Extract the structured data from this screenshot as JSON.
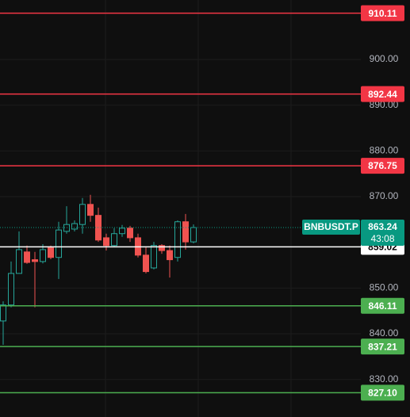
{
  "chart_data": {
    "type": "candlestick",
    "ylim": [
      821.8,
      913.0
    ],
    "yticks": [
      {
        "value": 830,
        "label": "830.00"
      },
      {
        "value": 840,
        "label": "840.00"
      },
      {
        "value": 850,
        "label": "850.00"
      },
      {
        "value": 870,
        "label": "870.00"
      },
      {
        "value": 880,
        "label": "880.00"
      },
      {
        "value": 890,
        "label": "890.00"
      },
      {
        "value": 900,
        "label": "900.00"
      }
    ],
    "grid": true,
    "up_color": "#26a69a",
    "down_color": "#ef5350",
    "open": [
      842.8,
      846.3,
      853.2,
      857.9,
      856.2,
      855.8,
      858.8,
      856.7,
      862.4,
      862.9,
      863.9,
      868.3,
      865.9,
      861.0,
      859.3,
      861.9,
      863.1,
      861.0,
      857.2,
      854.4,
      859.3,
      858.2,
      856.7,
      864.5,
      860.1
    ],
    "high": [
      847.1,
      855.8,
      862.4,
      859.3,
      857.9,
      859.6,
      859.3,
      864.5,
      867.9,
      864.8,
      869.7,
      870.4,
      867.6,
      861.9,
      863.1,
      863.8,
      863.6,
      861.9,
      858.9,
      860.1,
      859.6,
      859.3,
      864.8,
      866.2,
      863.9
    ],
    "low": [
      837.6,
      845.8,
      853.2,
      855.3,
      845.8,
      855.4,
      856.3,
      852.0,
      861.9,
      862.4,
      861.9,
      864.5,
      860.1,
      858.2,
      858.9,
      861.2,
      860.1,
      856.7,
      853.2,
      854.1,
      857.5,
      852.3,
      855.8,
      858.4,
      859.8
    ],
    "close": [
      846.3,
      853.2,
      858.4,
      855.6,
      855.8,
      858.4,
      856.7,
      862.7,
      863.9,
      864.1,
      868.3,
      865.9,
      860.5,
      859.3,
      861.9,
      863.1,
      861.0,
      857.2,
      853.6,
      859.3,
      858.2,
      856.2,
      864.5,
      860.1,
      863.24
    ],
    "levels": [
      {
        "value": 910.11,
        "label": "910.11",
        "color": "#f23645"
      },
      {
        "value": 892.44,
        "label": "892.44",
        "color": "#f23645"
      },
      {
        "value": 876.75,
        "label": "876.75",
        "color": "#f23645"
      },
      {
        "value": 859.02,
        "label": "859.02",
        "color": "#ffffff"
      },
      {
        "value": 846.11,
        "label": "846.11",
        "color": "#4caf50"
      },
      {
        "value": 837.21,
        "label": "837.21",
        "color": "#4caf50"
      },
      {
        "value": 827.1,
        "label": "827.10",
        "color": "#4caf50"
      }
    ],
    "last": {
      "symbol": "BNBUSDT.P",
      "value": 863.24,
      "countdown": "43:08",
      "color": "#089981"
    }
  }
}
